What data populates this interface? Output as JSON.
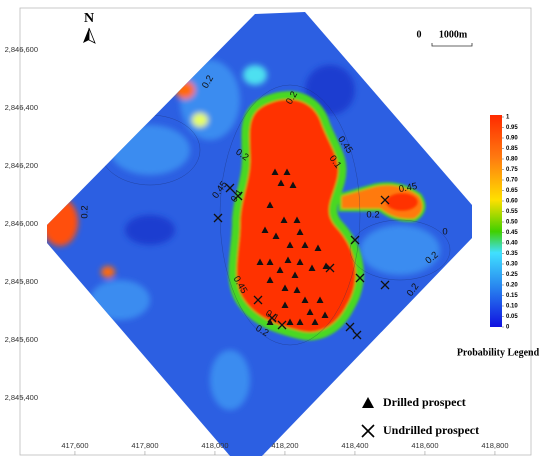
{
  "map": {
    "north": "N",
    "scale": {
      "start": "0",
      "end": "1000m"
    },
    "xaxis": {
      "lim": [
        417443,
        418903
      ],
      "ticks": [
        {
          "value": 417600,
          "label": "417,600"
        },
        {
          "value": 417800,
          "label": "417,800"
        },
        {
          "value": 418000,
          "label": "418,000"
        },
        {
          "value": 418200,
          "label": "418,200"
        },
        {
          "value": 418400,
          "label": "418,400"
        },
        {
          "value": 418600,
          "label": "418,600"
        },
        {
          "value": 418800,
          "label": "418,800"
        }
      ]
    },
    "yaxis": {
      "lim": [
        2845203,
        2846745
      ],
      "ticks": [
        {
          "value": 2846600,
          "label": "2,846,600"
        },
        {
          "value": 2846400,
          "label": "2,846,400"
        },
        {
          "value": 2846200,
          "label": "2,846,200"
        },
        {
          "value": 2846000,
          "label": "2,846,000"
        },
        {
          "value": 2845800,
          "label": "2,845,800"
        },
        {
          "value": 2845600,
          "label": "2,845,600"
        },
        {
          "value": 2845400,
          "label": "2,845,400"
        }
      ]
    },
    "legend": {
      "title": "Probability Legend",
      "lim": [
        0,
        1
      ],
      "ticks": [
        1,
        0.95,
        {
          "value": 0.9,
          "label": "0.90"
        },
        0.85,
        {
          "value": 0.8,
          "label": "0.80"
        },
        0.75,
        {
          "value": 0.7,
          "label": "0.70"
        },
        0.65,
        {
          "value": 0.6,
          "label": "0.60"
        },
        0.55,
        {
          "value": 0.5,
          "label": "0.50"
        },
        0.45,
        {
          "value": 0.4,
          "label": "0.40"
        },
        0.35,
        {
          "value": 0.3,
          "label": "0.30"
        },
        0.25,
        {
          "value": 0.2,
          "label": "0.20"
        },
        0.15,
        {
          "value": 0.1,
          "label": "0.10"
        },
        0.05,
        0
      ]
    },
    "markers": {
      "drilled": "Drilled prospect",
      "undrilled": "Undrilled prospect"
    },
    "contour_labels": [
      "0.2",
      "0.2",
      "0.2",
      "0.45",
      "0.1",
      "0.45",
      "0.1",
      "0.2",
      "0.45",
      "0.2",
      "0.2",
      "0.45",
      "0.1",
      "0.2",
      "0.2",
      "0"
    ]
  }
}
